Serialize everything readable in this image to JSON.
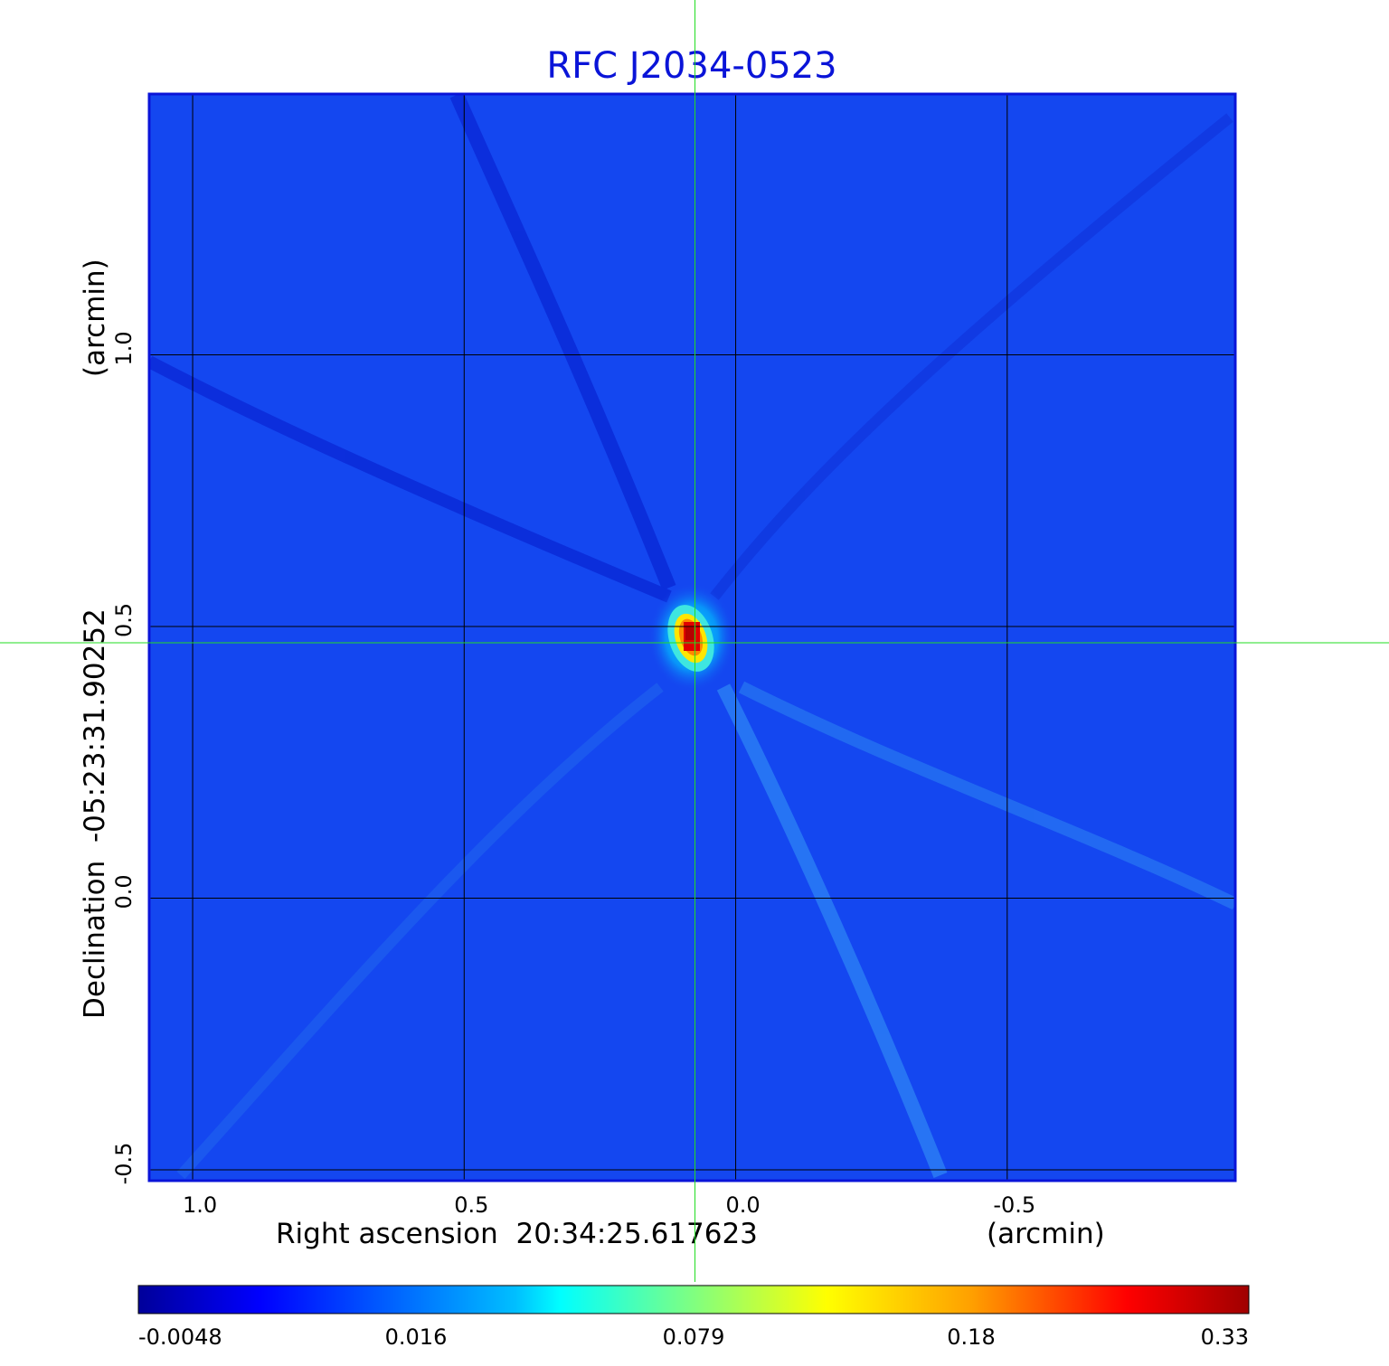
{
  "chart_data": {
    "type": "heatmap",
    "title": "RFC J2034-0523",
    "xlabel": "Right ascension  20:34:25.617623",
    "xlabel_unit": "(arcmin)",
    "ylabel": "Declination  -05:23:31.90252",
    "ylabel_unit": "(arcmin)",
    "x_ticks": [
      {
        "value": 1.0,
        "label": "1.0"
      },
      {
        "value": 0.5,
        "label": "0.5"
      },
      {
        "value": 0.0,
        "label": "0.0"
      },
      {
        "value": -0.5,
        "label": "-0.5"
      }
    ],
    "y_ticks": [
      {
        "value": 1.0,
        "label": "1.0"
      },
      {
        "value": 0.5,
        "label": "0.5"
      },
      {
        "value": 0.0,
        "label": "0.0"
      },
      {
        "value": -0.5,
        "label": "-0.5"
      }
    ],
    "xlim": [
      1.08,
      -0.92
    ],
    "ylim": [
      -0.52,
      1.48
    ],
    "x_reversed": true,
    "grid": true,
    "crosshair": {
      "x": 0.075,
      "y": 0.47
    },
    "peak": {
      "x": 0.08,
      "y": 0.47,
      "value": 0.33
    },
    "colorbar": {
      "ticks": [
        "-0.0048",
        "0.016",
        "0.079",
        "0.18",
        "0.33"
      ],
      "min": -0.0048,
      "max": 0.33,
      "colormap": "jet"
    },
    "colors": {
      "background_map": "#1447f0",
      "title": "#0a14d8",
      "crosshair": "#22dd22",
      "grid": "#000000"
    }
  }
}
